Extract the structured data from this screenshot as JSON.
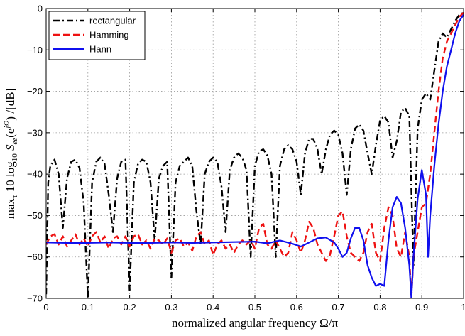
{
  "chart_data": {
    "type": "line",
    "title": "",
    "xlabel": "normalized angular frequency Ω/π",
    "ylabel": "max_τ 10 log_10 S_ee(e^{jΩ}) /[dB]",
    "ylabel_parts": {
      "max": "max",
      "max_sub": "τ",
      "mid": " 10 log",
      "log_sub": "10",
      "s": " S",
      "s_sub": "ee",
      "open": "(e",
      "sup": "jΩ",
      "close": ") /[dB]"
    },
    "xlim": [
      0,
      1
    ],
    "ylim": [
      -70,
      0
    ],
    "xticks": [
      0,
      0.1,
      0.2,
      0.3,
      0.4,
      0.5,
      0.6,
      0.7,
      0.8,
      0.9,
      1
    ],
    "xtick_labels": [
      "0",
      "0.1",
      "0.2",
      "0.3",
      "0.4",
      "0.5",
      "0.6",
      "0.7",
      "0.8",
      "0.9",
      "1"
    ],
    "yticks": [
      0,
      -10,
      -20,
      -30,
      -40,
      -50,
      -60,
      -70
    ],
    "ytick_labels": [
      "0",
      "−10",
      "−20",
      "−30",
      "−40",
      "−50",
      "−60",
      "−70"
    ],
    "grid": true,
    "legend_position": "top-left",
    "series": [
      {
        "name": "rectangular",
        "color": "#000000",
        "style": "dash-dot",
        "x": [
          0,
          0.005,
          0.01,
          0.02,
          0.03,
          0.04,
          0.05,
          0.06,
          0.07,
          0.08,
          0.09,
          0.1,
          0.11,
          0.12,
          0.13,
          0.14,
          0.15,
          0.16,
          0.17,
          0.18,
          0.19,
          0.2,
          0.21,
          0.22,
          0.23,
          0.24,
          0.25,
          0.26,
          0.27,
          0.28,
          0.29,
          0.3,
          0.31,
          0.32,
          0.33,
          0.34,
          0.35,
          0.36,
          0.37,
          0.38,
          0.39,
          0.4,
          0.41,
          0.42,
          0.43,
          0.44,
          0.45,
          0.46,
          0.47,
          0.48,
          0.49,
          0.5,
          0.51,
          0.52,
          0.53,
          0.54,
          0.55,
          0.56,
          0.57,
          0.58,
          0.59,
          0.6,
          0.61,
          0.62,
          0.63,
          0.64,
          0.65,
          0.66,
          0.67,
          0.68,
          0.69,
          0.7,
          0.71,
          0.72,
          0.73,
          0.74,
          0.75,
          0.76,
          0.77,
          0.78,
          0.79,
          0.8,
          0.81,
          0.82,
          0.83,
          0.84,
          0.85,
          0.86,
          0.87,
          0.88,
          0.89,
          0.9,
          0.91,
          0.92,
          0.93,
          0.94,
          0.95,
          0.96,
          0.97,
          0.98,
          0.99,
          1.0
        ],
        "y": [
          -69,
          -42,
          -38,
          -36.5,
          -40,
          -53,
          -41,
          -37,
          -36.5,
          -38.5,
          -47,
          -70,
          -42,
          -37,
          -36,
          -37.5,
          -45,
          -54,
          -41,
          -37,
          -36.5,
          -68,
          -42,
          -37.5,
          -36.5,
          -37,
          -42,
          -56,
          -41,
          -38,
          -37,
          -65,
          -42,
          -38,
          -37,
          -36,
          -38,
          -49,
          -57,
          -40,
          -37,
          -36,
          -37,
          -43,
          -54,
          -39,
          -36,
          -35,
          -36,
          -39,
          -60,
          -38,
          -34.5,
          -34,
          -35.5,
          -40,
          -60,
          -38,
          -34,
          -33,
          -34,
          -37,
          -45,
          -35,
          -31.5,
          -31.5,
          -34,
          -40,
          -34,
          -30.5,
          -29.5,
          -30.5,
          -35,
          -45,
          -34,
          -29,
          -28,
          -29.5,
          -35,
          -40,
          -33,
          -27,
          -26,
          -27.5,
          -36,
          -32,
          -25,
          -24,
          -26,
          -62,
          -29,
          -22,
          -20.5,
          -22,
          -15,
          -8,
          -6,
          -7,
          -5,
          -3,
          -1.5,
          -1
        ]
      },
      {
        "name": "Hamming",
        "color": "#ee1111",
        "style": "dashed",
        "x": [
          0,
          0.01,
          0.02,
          0.03,
          0.04,
          0.05,
          0.06,
          0.07,
          0.08,
          0.09,
          0.1,
          0.11,
          0.12,
          0.13,
          0.14,
          0.15,
          0.16,
          0.17,
          0.18,
          0.19,
          0.2,
          0.21,
          0.22,
          0.23,
          0.24,
          0.25,
          0.26,
          0.27,
          0.28,
          0.29,
          0.3,
          0.31,
          0.32,
          0.33,
          0.34,
          0.35,
          0.36,
          0.37,
          0.38,
          0.39,
          0.4,
          0.41,
          0.42,
          0.43,
          0.44,
          0.45,
          0.46,
          0.47,
          0.48,
          0.49,
          0.5,
          0.51,
          0.52,
          0.53,
          0.54,
          0.55,
          0.56,
          0.57,
          0.58,
          0.59,
          0.6,
          0.61,
          0.62,
          0.63,
          0.64,
          0.65,
          0.66,
          0.67,
          0.68,
          0.69,
          0.7,
          0.71,
          0.72,
          0.73,
          0.74,
          0.75,
          0.76,
          0.77,
          0.78,
          0.79,
          0.8,
          0.81,
          0.82,
          0.83,
          0.84,
          0.85,
          0.86,
          0.87,
          0.875,
          0.88,
          0.89,
          0.9,
          0.91,
          0.92,
          0.93,
          0.94,
          0.95,
          0.96,
          0.97,
          0.98,
          0.99,
          1.0
        ],
        "y": [
          -57,
          -55,
          -54.5,
          -57,
          -55,
          -57.5,
          -56,
          -54.5,
          -57,
          -55.5,
          -57.5,
          -55,
          -54,
          -56.5,
          -55,
          -58,
          -55.5,
          -55,
          -57,
          -55,
          -57.5,
          -55,
          -54.5,
          -57,
          -56,
          -58,
          -55.5,
          -56,
          -57,
          -55.5,
          -59,
          -56,
          -55.5,
          -57.5,
          -56.5,
          -58.5,
          -55,
          -54,
          -57,
          -56,
          -59.5,
          -57,
          -56,
          -58,
          -57,
          -59,
          -57,
          -56,
          -57,
          -56,
          -58,
          -53,
          -52,
          -57,
          -58,
          -56,
          -58,
          -60,
          -59,
          -54,
          -56,
          -59,
          -56,
          -51.5,
          -53,
          -57,
          -59,
          -61,
          -59.5,
          -55,
          -50,
          -49,
          -55,
          -59,
          -60,
          -61,
          -59,
          -54,
          -52,
          -59,
          -61,
          -53,
          -48,
          -50,
          -58,
          -60,
          -54,
          -60,
          -70,
          -60,
          -54,
          -48,
          -47,
          -40,
          -30,
          -20,
          -12,
          -8,
          -6,
          -4,
          -2,
          -1
        ]
      },
      {
        "name": "Hann",
        "color": "#1010ee",
        "style": "solid",
        "x": [
          0,
          0.05,
          0.1,
          0.15,
          0.2,
          0.25,
          0.3,
          0.35,
          0.4,
          0.45,
          0.5,
          0.53,
          0.56,
          0.59,
          0.61,
          0.63,
          0.65,
          0.67,
          0.69,
          0.7,
          0.71,
          0.72,
          0.73,
          0.74,
          0.75,
          0.76,
          0.77,
          0.78,
          0.79,
          0.8,
          0.81,
          0.82,
          0.83,
          0.84,
          0.85,
          0.86,
          0.87,
          0.875,
          0.88,
          0.89,
          0.9,
          0.91,
          0.915,
          0.92,
          0.93,
          0.94,
          0.95,
          0.96,
          0.97,
          0.98,
          0.99,
          1.0
        ],
        "y": [
          -56.5,
          -56.6,
          -56.6,
          -56.5,
          -56.6,
          -56.6,
          -56.5,
          -56.6,
          -56.5,
          -56.4,
          -56.3,
          -56.7,
          -56,
          -56.8,
          -57.5,
          -56.5,
          -55.5,
          -55.3,
          -56.5,
          -58,
          -60,
          -59,
          -55.5,
          -53,
          -53,
          -56,
          -62,
          -65,
          -67,
          -66.5,
          -67,
          -56,
          -48,
          -45.5,
          -47,
          -53,
          -62,
          -70,
          -60,
          -46,
          -39,
          -45,
          -60,
          -50,
          -38,
          -28,
          -20,
          -14,
          -10,
          -6,
          -3,
          -1.5
        ]
      }
    ]
  }
}
